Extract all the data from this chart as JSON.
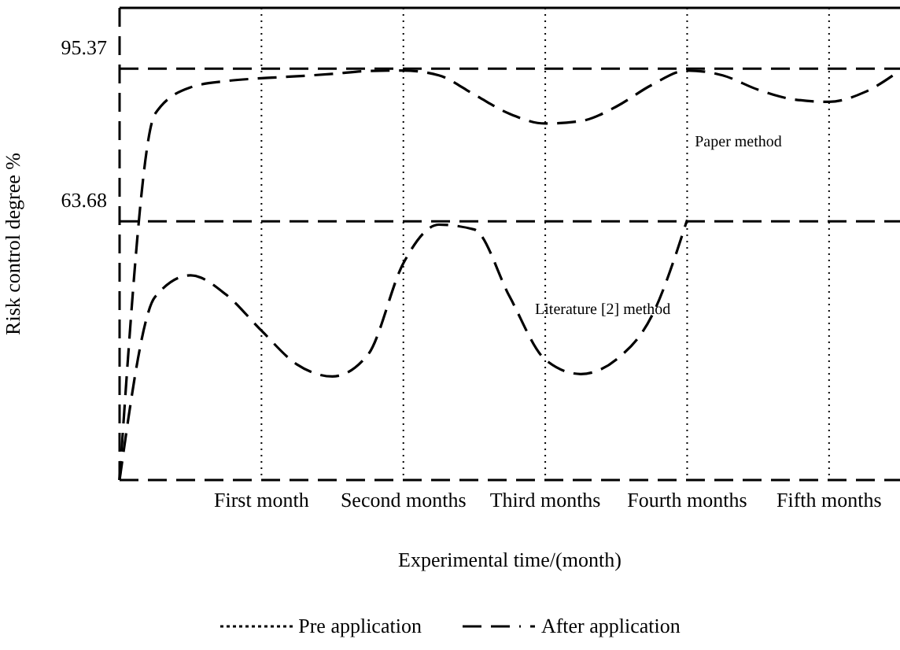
{
  "chart_data": {
    "type": "line",
    "xlabel": "Experimental time/(month)",
    "ylabel": "Risk control degree %",
    "categories": [
      null,
      null,
      null,
      null,
      "First month",
      null,
      null,
      null,
      "Second months",
      null,
      null,
      null,
      "Third months",
      null,
      null,
      null,
      "Fourth months",
      null,
      null,
      null,
      "Fifth months",
      null,
      null
    ],
    "ylim": [
      10,
      108
    ],
    "yticks": [
      63.68,
      95.37
    ],
    "grid": "x",
    "line_style": "dashed",
    "series": [
      {
        "name": "Paper method",
        "color": "#000000",
        "values": [
          10,
          86,
          91.5,
          92.8,
          93.4,
          93.8,
          94.3,
          94.9,
          95,
          94,
          90,
          86,
          84,
          84.5,
          87.5,
          92,
          95,
          94,
          91,
          89,
          88.5,
          90.5,
          95
        ]
      },
      {
        "name": "Literature [2] method",
        "color": "#000000",
        "values": [
          10,
          48,
          52.5,
          48.5,
          41,
          34,
          31.5,
          36,
          55,
          63,
          62,
          48,
          35,
          32,
          35,
          44,
          64,
          null,
          null,
          null,
          null,
          null,
          null
        ]
      }
    ],
    "ref_lines": [
      {
        "axis": "y",
        "value": 95.37,
        "line_style": "dashed",
        "color": "#000000"
      },
      {
        "axis": "y",
        "value": 63.68,
        "line_style": "dashed",
        "color": "#000000"
      }
    ],
    "annotations": [
      "Pre application",
      "After application"
    ]
  }
}
